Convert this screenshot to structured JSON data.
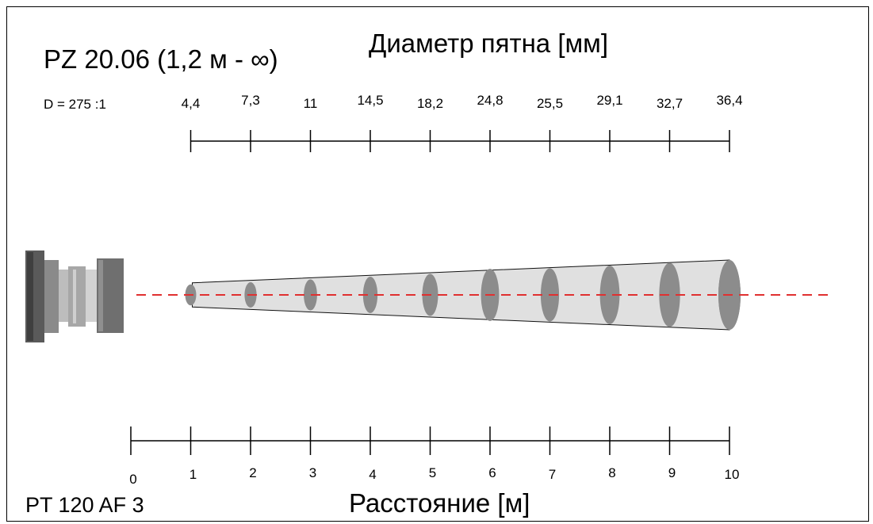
{
  "title": "PZ 20.06 (1,2 м - ∞)",
  "spot_heading": "Диаметр пятна [мм]",
  "distance_heading": "Расстояние [м]",
  "model": "PT 120 AF 3",
  "ratio": "D = 275 :1",
  "chart_data": {
    "type": "diagram",
    "x_unit": "м",
    "y_unit": "мм",
    "distance_ticks": [
      "0",
      "1",
      "2",
      "3",
      "4",
      "5",
      "6",
      "7",
      "8",
      "9",
      "10"
    ],
    "spot_points": [
      {
        "distance": 1,
        "diameter_label": "4,4",
        "diameter": 4.4
      },
      {
        "distance": 2,
        "diameter_label": "7,3",
        "diameter": 7.3
      },
      {
        "distance": 3,
        "diameter_label": "11",
        "diameter": 11
      },
      {
        "distance": 4,
        "diameter_label": "14,5",
        "diameter": 14.5
      },
      {
        "distance": 5,
        "diameter_label": "18,2",
        "diameter": 18.2
      },
      {
        "distance": 6,
        "diameter_label": "24,8",
        "diameter": 24.8
      },
      {
        "distance": 7,
        "diameter_label": "25,5",
        "diameter": 25.5
      },
      {
        "distance": 8,
        "diameter_label": "29,1",
        "diameter": 29.1
      },
      {
        "distance": 9,
        "diameter_label": "32,7",
        "diameter": 32.7
      },
      {
        "distance": 10,
        "diameter_label": "36,4",
        "diameter": 36.4
      }
    ]
  },
  "colors": {
    "axis_line": "#e03030",
    "cone_fill": "#e0e0e0",
    "spot_fill": "#8c8c8c",
    "sensor_body": "#777777"
  },
  "icons": {
    "sensor": "pyrometer-lens-icon"
  }
}
